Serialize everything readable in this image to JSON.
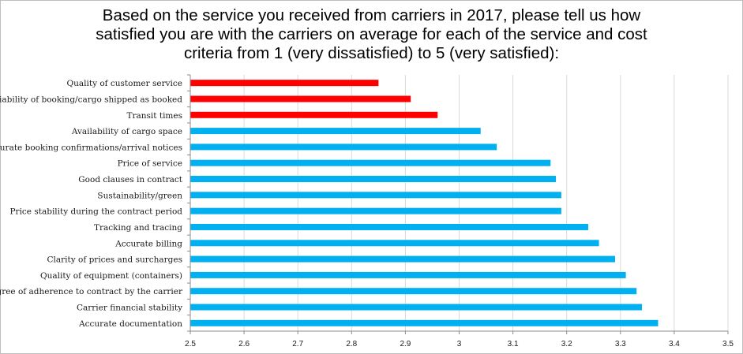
{
  "chart_data": {
    "type": "bar",
    "orientation": "horizontal",
    "title_lines": [
      "Based on the service you received from carriers in 2017, please tell us how",
      "satisfied you are with the carriers on average for each of the service and cost",
      "criteria from 1 (very dissatisfied) to 5 (very satisfied):"
    ],
    "categories": [
      "Quality of customer service",
      "Reliability of booking/cargo shipped as booked",
      "Transit times",
      "Availability of cargo space",
      "Accurate booking confirmations/arrival notices",
      "Price of service",
      "Good clauses in contract",
      "Sustainability/green",
      "Price stability during the contract period",
      "Tracking and tracing",
      "Accurate billing",
      "Clarity of prices and surcharges",
      "Quality of equipment (containers)",
      "Degree of adherence to contract by the carrier",
      "Carrier financial stability",
      "Accurate documentation"
    ],
    "values": [
      2.85,
      2.91,
      2.96,
      3.04,
      3.07,
      3.17,
      3.18,
      3.19,
      3.19,
      3.24,
      3.26,
      3.29,
      3.31,
      3.33,
      3.34,
      3.37
    ],
    "highlighted": [
      true,
      true,
      true,
      false,
      false,
      false,
      false,
      false,
      false,
      false,
      false,
      false,
      false,
      false,
      false,
      false
    ],
    "xlim": [
      2.5,
      3.5
    ],
    "x_ticks": [
      "2.5",
      "2.6",
      "2.7",
      "2.8",
      "2.9",
      "3",
      "3.1",
      "3.2",
      "3.3",
      "3.4",
      "3.5"
    ],
    "grid": true,
    "legend": "none",
    "colors": {
      "highlight": "#ff0000",
      "default": "#00b0f0",
      "grid": "#d9d9d9",
      "axis": "#8c8c8c"
    }
  }
}
